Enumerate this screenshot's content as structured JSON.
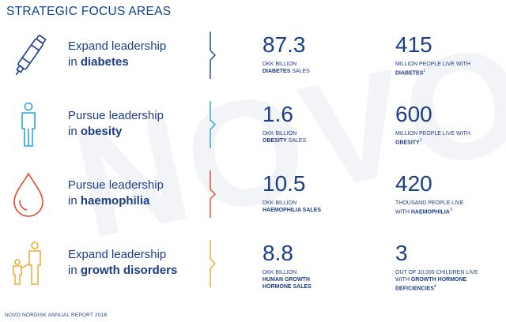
{
  "title": "STRATEGIC FOCUS AREAS",
  "watermark": "NOVO",
  "footer": "NOVO NORDISK ANNUAL REPORT 2016",
  "colors": {
    "navy": "#1c3e86",
    "cyan": "#2aa6d6",
    "red": "#e1482f",
    "orange": "#f0a830"
  },
  "areas": [
    {
      "icon": "insulin-pen-icon",
      "lead_line1": "Expand leadership",
      "lead_pre": "in ",
      "lead_bold": "diabetes",
      "stat1_value": "87.3",
      "stat1_line1": "DKK BILLION",
      "stat1_bold": "DIABETES",
      "stat1_after": " SALES",
      "stat2_value": "415",
      "stat2_line1": "MILLION PEOPLE LIVE WITH",
      "stat2_bold": "DIABETES",
      "stat2_sup": "1"
    },
    {
      "icon": "person-icon",
      "lead_line1": "Pursue leadership",
      "lead_pre": "in ",
      "lead_bold": "obesity",
      "stat1_value": "1.6",
      "stat1_line1": "DKK BILLION",
      "stat1_bold": "OBESITY",
      "stat1_after": " SALES",
      "stat2_value": "600",
      "stat2_line1": "MILLION PEOPLE LIVE WITH",
      "stat2_bold": "OBESITY",
      "stat2_sup": "2"
    },
    {
      "icon": "blood-drop-icon",
      "lead_line1": "Pursue leadership",
      "lead_pre": "in ",
      "lead_bold": "haemophilia",
      "stat1_value": "10.5",
      "stat1_line1": "DKK BILLION",
      "stat1_bold": "HAEMOPHILIA SALES",
      "stat1_after": "",
      "stat2_value": "420",
      "stat2_line1": "THOUSAND PEOPLE LIVE",
      "stat2_pre": "WITH ",
      "stat2_bold": "HAEMOPHILIA",
      "stat2_sup": "3"
    },
    {
      "icon": "parent-child-icon",
      "lead_line1": "Expand leadership",
      "lead_pre": "in ",
      "lead_bold": "growth disorders",
      "stat1_value": "8.8",
      "stat1_line1": "DKK BILLION",
      "stat1_bold": "HUMAN GROWTH",
      "stat1_bold2": "HORMONE SALES",
      "stat2_value": "3",
      "stat2_line1": "OUT OF 10,000 CHILDREN LIVE",
      "stat2_pre": "WITH ",
      "stat2_bold": "GROWTH HORMONE",
      "stat2_bold2": "DEFICIENCIES",
      "stat2_sup": "4"
    }
  ]
}
